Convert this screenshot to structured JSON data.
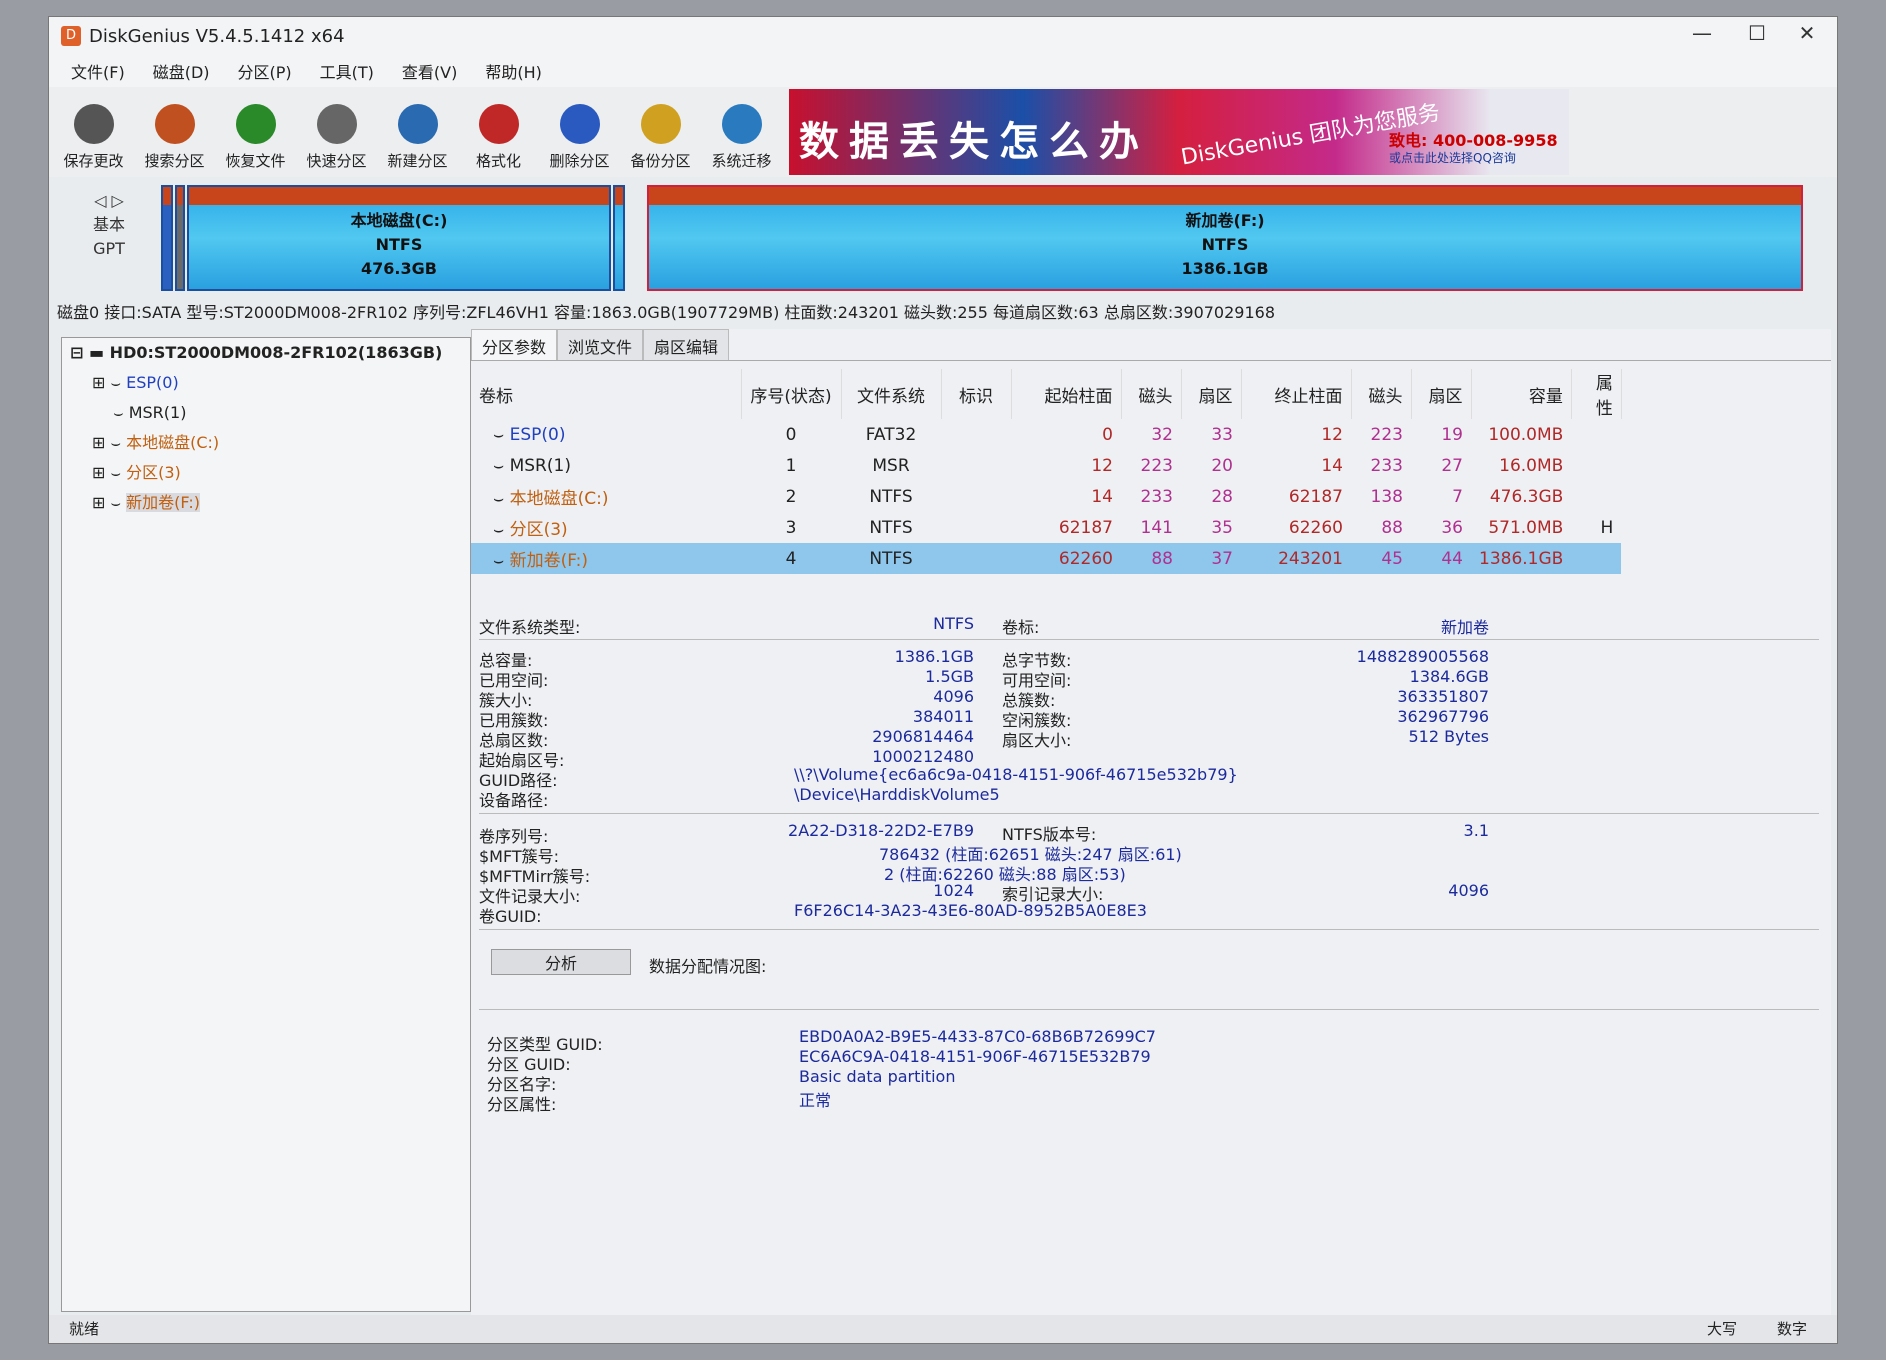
{
  "window": {
    "title": "DiskGenius V5.4.5.1412 x64",
    "minimize": "—",
    "maximize": "☐",
    "close": "✕"
  },
  "menu": [
    "文件(F)",
    "磁盘(D)",
    "分区(P)",
    "工具(T)",
    "查看(V)",
    "帮助(H)"
  ],
  "toolbar": [
    {
      "label": "保存更改",
      "color": "#555"
    },
    {
      "label": "搜索分区",
      "color": "#c05020"
    },
    {
      "label": "恢复文件",
      "color": "#2a8a2a"
    },
    {
      "label": "快速分区",
      "color": "#666"
    },
    {
      "label": "新建分区",
      "color": "#2a6ab0"
    },
    {
      "label": "格式化",
      "color": "#c02828"
    },
    {
      "label": "删除分区",
      "color": "#2a5ac0"
    },
    {
      "label": "备份分区",
      "color": "#d0a020"
    },
    {
      "label": "系统迁移",
      "color": "#2a7ac0"
    }
  ],
  "banner": {
    "slogan": "数据丢失怎么办",
    "brand": "DiskGenius 团队为您服务",
    "phone": "致电: 400-008-9958",
    "qq": "或点击此处选择QQ咨询"
  },
  "diskmap": {
    "nav_type": "基本",
    "nav_scheme": "GPT",
    "partitions": [
      {
        "name": "本地磁盘(C:)",
        "fs": "NTFS",
        "size": "476.3GB"
      },
      {
        "name": "新加卷(F:)",
        "fs": "NTFS",
        "size": "1386.1GB"
      }
    ]
  },
  "disk_info": "磁盘0 接口:SATA  型号:ST2000DM008-2FR102  序列号:ZFL46VH1  容量:1863.0GB(1907729MB)  柱面数:243201  磁头数:255  每道扇区数:63  总扇区数:3907029168",
  "tree": {
    "root": "HD0:ST2000DM008-2FR102(1863GB)",
    "items": [
      {
        "label": "ESP(0)",
        "color": "#2040c0"
      },
      {
        "label": "MSR(1)",
        "color": "#222"
      },
      {
        "label": "本地磁盘(C:)",
        "color": "#c06010"
      },
      {
        "label": "分区(3)",
        "color": "#c06010"
      },
      {
        "label": "新加卷(F:)",
        "color": "#c06010"
      }
    ]
  },
  "tabs": [
    "分区参数",
    "浏览文件",
    "扇区编辑"
  ],
  "table": {
    "headers": [
      "卷标",
      "序号(状态)",
      "文件系统",
      "标识",
      "起始柱面",
      "磁头",
      "扇区",
      "终止柱面",
      "磁头",
      "扇区",
      "容量",
      "属性"
    ],
    "rows": [
      {
        "name": "ESP(0)",
        "color": "#2040c0",
        "cells": [
          "0",
          "FAT32",
          "",
          "0",
          "32",
          "33",
          "12",
          "223",
          "19",
          "100.0MB",
          ""
        ]
      },
      {
        "name": "MSR(1)",
        "color": "#222",
        "cells": [
          "1",
          "MSR",
          "",
          "12",
          "223",
          "20",
          "14",
          "233",
          "27",
          "16.0MB",
          ""
        ]
      },
      {
        "name": "本地磁盘(C:)",
        "color": "#c06010",
        "cells": [
          "2",
          "NTFS",
          "",
          "14",
          "233",
          "28",
          "62187",
          "138",
          "7",
          "476.3GB",
          ""
        ]
      },
      {
        "name": "分区(3)",
        "color": "#c06010",
        "cells": [
          "3",
          "NTFS",
          "",
          "62187",
          "141",
          "35",
          "62260",
          "88",
          "36",
          "571.0MB",
          "H"
        ]
      },
      {
        "name": "新加卷(F:)",
        "color": "#c06010",
        "selected": true,
        "cells": [
          "4",
          "NTFS",
          "",
          "62260",
          "88",
          "37",
          "243201",
          "45",
          "44",
          "1386.1GB",
          ""
        ]
      }
    ]
  },
  "details": {
    "fs_type_label": "文件系统类型:",
    "fs_type": "NTFS",
    "vol_label_label": "卷标:",
    "vol_label": "新加卷",
    "left": [
      [
        "总容量:",
        "1386.1GB"
      ],
      [
        "已用空间:",
        "1.5GB"
      ],
      [
        "簇大小:",
        "4096"
      ],
      [
        "已用簇数:",
        "384011"
      ],
      [
        "总扇区数:",
        "2906814464"
      ],
      [
        "起始扇区号:",
        "1000212480"
      ]
    ],
    "right": [
      [
        "总字节数:",
        "1488289005568"
      ],
      [
        "可用空间:",
        "1384.6GB"
      ],
      [
        "总簇数:",
        "363351807"
      ],
      [
        "空闲簇数:",
        "362967796"
      ],
      [
        "扇区大小:",
        "512 Bytes"
      ]
    ],
    "guid_path_label": "GUID路径:",
    "guid_path": "\\\\?\\Volume{ec6a6c9a-0418-4151-906f-46715e532b79}",
    "device_path_label": "设备路径:",
    "device_path": "\\Device\\HarddiskVolume5",
    "serial_label": "卷序列号:",
    "serial": "2A22-D318-22D2-E7B9",
    "ntfs_ver_label": "NTFS版本号:",
    "ntfs_ver": "3.1",
    "mft_label": "$MFT簇号:",
    "mft": "786432 (柱面:62651 磁头:247 扇区:61)",
    "mftmirr_label": "$MFTMirr簇号:",
    "mftmirr": "2 (柱面:62260 磁头:88 扇区:53)",
    "frs_label": "文件记录大小:",
    "frs": "1024",
    "irs_label": "索引记录大小:",
    "irs": "4096",
    "volguid_label": "卷GUID:",
    "volguid": "F6F26C14-3A23-43E6-80AD-8952B5A0E8E3",
    "analyze_button": "分析",
    "alloc_label": "数据分配情况图:",
    "ptype_label": "分区类型 GUID:",
    "ptype": "EBD0A0A2-B9E5-4433-87C0-68B6B72699C7",
    "pguid_label": "分区 GUID:",
    "pguid": "EC6A6C9A-0418-4151-906F-46715E532B79",
    "pname_label": "分区名字:",
    "pname": "Basic data partition",
    "pattr_label": "分区属性:",
    "pattr": "正常"
  },
  "status": {
    "text": "就绪",
    "caps": "大写",
    "num": "数字"
  }
}
